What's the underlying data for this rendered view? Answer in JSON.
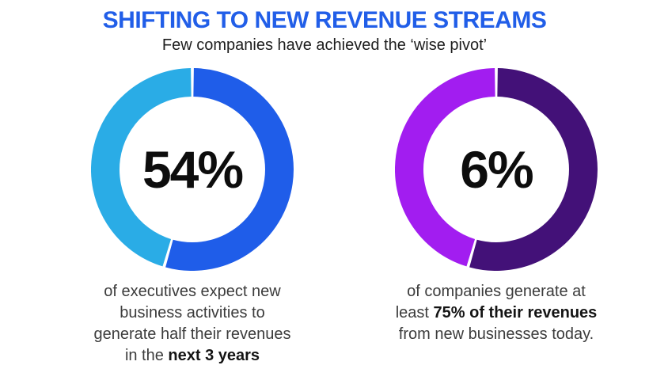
{
  "header": {
    "title": "SHIFTING TO NEW REVENUE STREAMS",
    "subtitle": "Few companies have achieved the ‘wise pivot’",
    "title_color": "#215ee8",
    "subtitle_color": "#1e1e1e"
  },
  "chart_data": [
    {
      "type": "pie",
      "variant": "donut",
      "center_label": "54%",
      "stat_value": 54,
      "legend_position": "none",
      "segments": [
        {
          "name": "expect-new-revenue",
          "pct": 54.5,
          "color": "#1f5de9"
        },
        {
          "name": "remainder",
          "pct": 45.5,
          "color": "#2aace6"
        }
      ],
      "caption_text": "of executives expect new business activities to generate half their revenues in the next 3 years",
      "caption_lines": [
        [
          {
            "t": "of executives expect new",
            "b": false
          }
        ],
        [
          {
            "t": "business activities to",
            "b": false
          }
        ],
        [
          {
            "t": "generate half their revenues",
            "b": false
          }
        ],
        [
          {
            "t": "in the ",
            "b": false
          },
          {
            "t": "next 3 years",
            "b": true
          }
        ]
      ]
    },
    {
      "type": "pie",
      "variant": "donut",
      "center_label": "6%",
      "stat_value": 6,
      "legend_position": "none",
      "segments": [
        {
          "name": "dark-majority",
          "pct": 54.5,
          "color": "#431178"
        },
        {
          "name": "bright-remainder",
          "pct": 45.5,
          "color": "#a21df0"
        }
      ],
      "caption_text": "of companies generate at least 75% of their revenues from new businesses today.",
      "caption_lines": [
        [
          {
            "t": "of companies generate at",
            "b": false
          }
        ],
        [
          {
            "t": "least ",
            "b": false
          },
          {
            "t": "75% of their revenues",
            "b": true
          }
        ],
        [
          {
            "t": "from new businesses today.",
            "b": false
          }
        ]
      ]
    }
  ]
}
